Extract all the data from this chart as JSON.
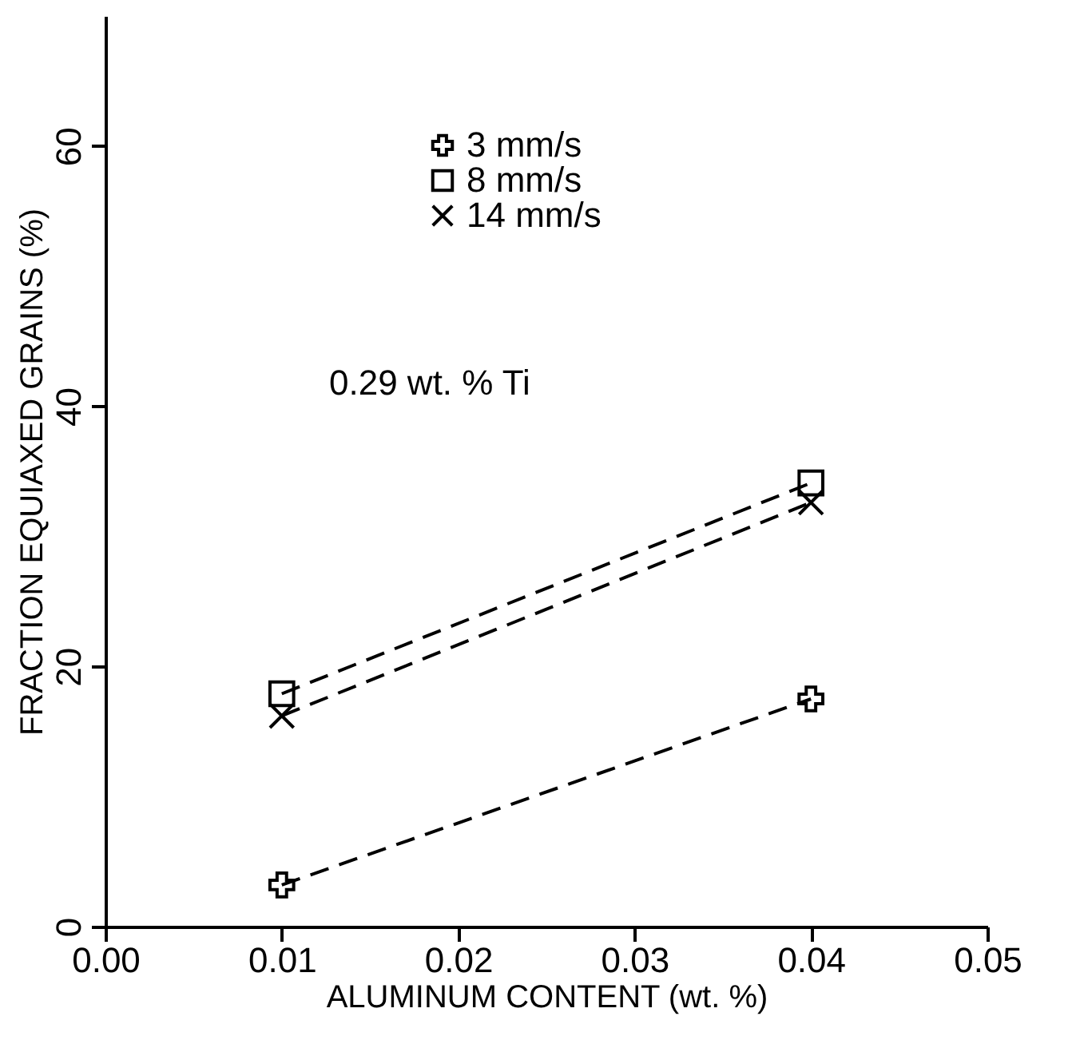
{
  "chart_data": {
    "type": "line",
    "x": [
      0.01,
      0.04
    ],
    "xlabel": "ALUMINUM CONTENT (wt. %)",
    "ylabel": "FRACTION EQUIAXED GRAINS (%)",
    "xlim": [
      0,
      0.05
    ],
    "ylim": [
      0,
      70
    ],
    "xticks": [
      {
        "value": 0,
        "label": "0.00"
      },
      {
        "value": 0.01,
        "label": "0.01"
      },
      {
        "value": 0.02,
        "label": "0.02"
      },
      {
        "value": 0.03,
        "label": "0.03"
      },
      {
        "value": 0.04,
        "label": "0.04"
      },
      {
        "value": 0.05,
        "label": "0.05"
      }
    ],
    "yticks": [
      0,
      20,
      40,
      60
    ],
    "series": [
      {
        "name": "3 mm/s",
        "color": "#000000",
        "marker": "cross",
        "values": [
          3.2,
          17.5
        ]
      },
      {
        "name": "8 mm/s",
        "color": "#000000",
        "marker": "square",
        "values": [
          17.9,
          34.1
        ]
      },
      {
        "name": "14 mm/s",
        "color": "#000000",
        "marker": "x",
        "values": [
          16.2,
          32.6
        ]
      }
    ],
    "line_style": "dashed",
    "legend": "top",
    "grid": false,
    "annotations": [
      "0.29 wt. % Ti"
    ]
  }
}
